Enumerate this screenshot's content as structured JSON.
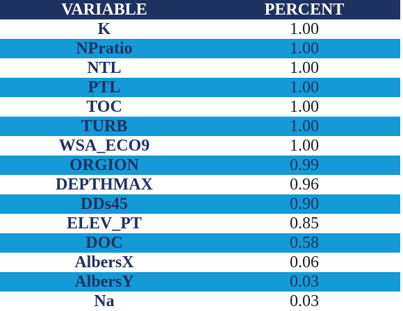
{
  "header": {
    "variable_label": "VARIABLE",
    "percent_label": "PERCENT"
  },
  "colors": {
    "header_bg": "#1f3161",
    "stripe_bg": "#149ad6",
    "text": "#1f3161"
  },
  "rows": [
    {
      "variable": "K",
      "percent": "1.00"
    },
    {
      "variable": "NPratio",
      "percent": "1.00"
    },
    {
      "variable": "NTL",
      "percent": "1.00"
    },
    {
      "variable": "PTL",
      "percent": "1.00"
    },
    {
      "variable": "TOC",
      "percent": "1.00"
    },
    {
      "variable": "TURB",
      "percent": "1.00"
    },
    {
      "variable": "WSA_ECO9",
      "percent": "1.00"
    },
    {
      "variable": "ORGION",
      "percent": "0.99"
    },
    {
      "variable": "DEPTHMAX",
      "percent": "0.96"
    },
    {
      "variable": "DDs45",
      "percent": "0.90"
    },
    {
      "variable": "ELEV_PT",
      "percent": "0.85"
    },
    {
      "variable": "DOC",
      "percent": "0.58"
    },
    {
      "variable": "AlbersX",
      "percent": "0.06"
    },
    {
      "variable": "AlbersY",
      "percent": "0.03"
    },
    {
      "variable": "Na",
      "percent": "0.03"
    }
  ]
}
